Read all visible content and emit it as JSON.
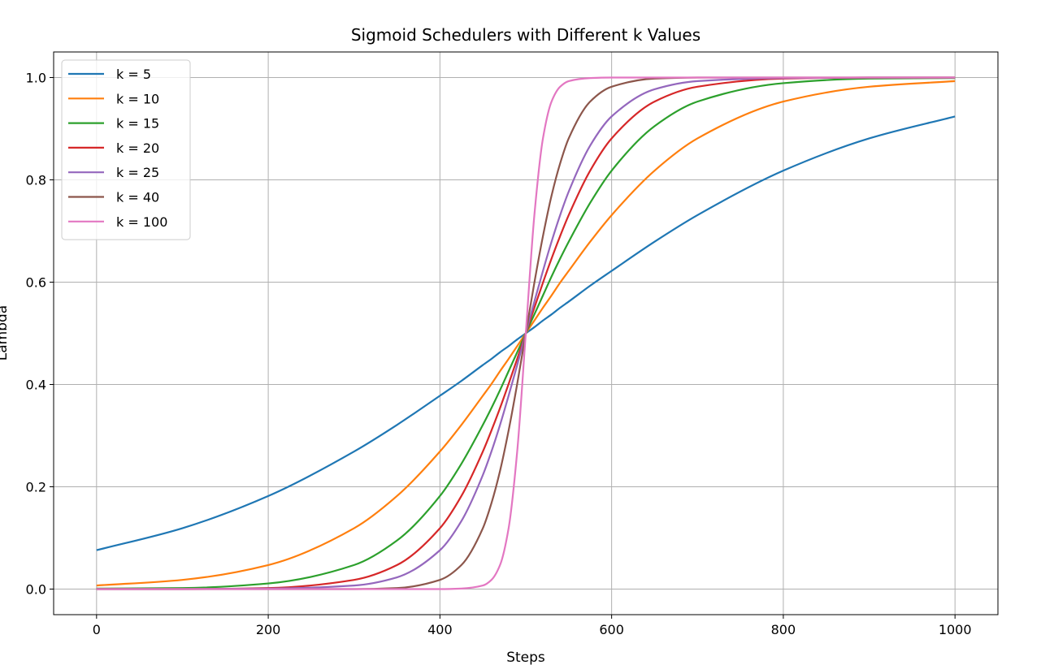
{
  "chart_data": {
    "type": "line",
    "title": "Sigmoid Schedulers with Different k Values",
    "xlabel": "Steps",
    "ylabel": "Lambda",
    "xlim": [
      -50,
      1050
    ],
    "ylim": [
      -0.05,
      1.05
    ],
    "xticks": [
      0,
      200,
      400,
      600,
      800,
      1000
    ],
    "xtick_labels": [
      "0",
      "200",
      "400",
      "600",
      "800",
      "1000"
    ],
    "yticks": [
      0.0,
      0.2,
      0.4,
      0.6,
      0.8,
      1.0
    ],
    "ytick_labels": [
      "0.0",
      "0.2",
      "0.4",
      "0.6",
      "0.8",
      "1.0"
    ],
    "grid": true,
    "legend_position": "top-left",
    "x": [
      0,
      100,
      200,
      300,
      350,
      400,
      425,
      450,
      460,
      470,
      480,
      490,
      500,
      510,
      520,
      530,
      540,
      550,
      575,
      600,
      650,
      700,
      800,
      900,
      1000
    ],
    "series": [
      {
        "name": "k = 5",
        "color": "#1f77b4",
        "values": [
          0.076,
          0.119,
          0.182,
          0.269,
          0.321,
          0.378,
          0.407,
          0.438,
          0.45,
          0.463,
          0.475,
          0.488,
          0.5,
          0.512,
          0.525,
          0.537,
          0.55,
          0.562,
          0.593,
          0.622,
          0.679,
          0.731,
          0.818,
          0.881,
          0.924
        ]
      },
      {
        "name": "k = 10",
        "color": "#ff7f0e",
        "values": [
          0.007,
          0.018,
          0.047,
          0.119,
          0.182,
          0.269,
          0.321,
          0.378,
          0.401,
          0.426,
          0.45,
          0.475,
          0.5,
          0.525,
          0.55,
          0.574,
          0.599,
          0.622,
          0.679,
          0.731,
          0.818,
          0.881,
          0.953,
          0.982,
          0.993
        ]
      },
      {
        "name": "k = 15",
        "color": "#2ca02c",
        "values": [
          0.001,
          0.002,
          0.011,
          0.047,
          0.095,
          0.182,
          0.245,
          0.321,
          0.354,
          0.389,
          0.426,
          0.463,
          0.5,
          0.537,
          0.574,
          0.611,
          0.646,
          0.679,
          0.755,
          0.818,
          0.905,
          0.953,
          0.989,
          0.998,
          0.999
        ]
      },
      {
        "name": "k = 20",
        "color": "#d62728",
        "values": [
          0,
          0,
          0.002,
          0.018,
          0.047,
          0.119,
          0.182,
          0.269,
          0.31,
          0.354,
          0.401,
          0.45,
          0.5,
          0.55,
          0.599,
          0.646,
          0.69,
          0.731,
          0.818,
          0.881,
          0.953,
          0.982,
          0.998,
          1,
          1
        ]
      },
      {
        "name": "k = 25",
        "color": "#9467bd",
        "values": [
          0,
          0,
          0.001,
          0.007,
          0.023,
          0.076,
          0.133,
          0.223,
          0.269,
          0.321,
          0.378,
          0.438,
          0.5,
          0.562,
          0.622,
          0.679,
          0.731,
          0.777,
          0.867,
          0.924,
          0.977,
          0.993,
          0.999,
          1,
          1
        ]
      },
      {
        "name": "k = 40",
        "color": "#8c564b",
        "values": [
          0,
          0,
          0,
          0,
          0.002,
          0.018,
          0.047,
          0.119,
          0.168,
          0.231,
          0.31,
          0.401,
          0.5,
          0.599,
          0.69,
          0.769,
          0.832,
          0.881,
          0.953,
          0.982,
          0.998,
          1,
          1,
          1,
          1
        ]
      },
      {
        "name": "k = 100",
        "color": "#e377c2",
        "values": [
          0,
          0,
          0,
          0,
          0,
          0,
          0.001,
          0.007,
          0.018,
          0.047,
          0.119,
          0.269,
          0.5,
          0.731,
          0.881,
          0.953,
          0.982,
          0.993,
          0.999,
          1,
          1,
          1,
          1,
          1,
          1
        ]
      }
    ]
  }
}
